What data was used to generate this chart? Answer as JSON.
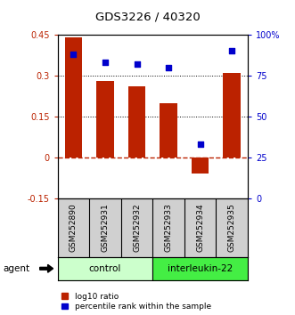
{
  "title": "GDS3226 / 40320",
  "samples": [
    "GSM252890",
    "GSM252931",
    "GSM252932",
    "GSM252933",
    "GSM252934",
    "GSM252935"
  ],
  "log10_ratio": [
    0.44,
    0.28,
    0.26,
    0.2,
    -0.06,
    0.31
  ],
  "percentile_rank": [
    88,
    83,
    82,
    80,
    33,
    90
  ],
  "ylim_left": [
    -0.15,
    0.45
  ],
  "ylim_right": [
    0,
    100
  ],
  "yticks_left": [
    -0.15,
    0,
    0.15,
    0.3,
    0.45
  ],
  "yticks_right": [
    0,
    25,
    50,
    75,
    100
  ],
  "ytick_labels_left": [
    "-0.15",
    "0",
    "0.15",
    "0.3",
    "0.45"
  ],
  "ytick_labels_right": [
    "0",
    "25",
    "50",
    "75",
    "100%"
  ],
  "bar_color": "#bb2200",
  "dot_color": "#0000cc",
  "hline_color": "#bb2200",
  "dotted_line_color": "#000000",
  "control_label": "control",
  "treatment_label": "interleukin-22",
  "agent_label": "agent",
  "control_color": "#ccffcc",
  "treatment_color": "#44ee44",
  "legend_ratio_label": "log10 ratio",
  "legend_rank_label": "percentile rank within the sample",
  "bar_width": 0.55,
  "figsize": [
    3.31,
    3.54
  ],
  "dpi": 100
}
